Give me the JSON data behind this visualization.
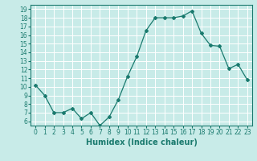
{
  "x": [
    0,
    1,
    2,
    3,
    4,
    5,
    6,
    7,
    8,
    9,
    10,
    11,
    12,
    13,
    14,
    15,
    16,
    17,
    18,
    19,
    20,
    21,
    22,
    23
  ],
  "y": [
    10.2,
    9.0,
    7.0,
    7.0,
    7.5,
    6.3,
    7.0,
    5.5,
    6.5,
    8.5,
    11.2,
    13.5,
    16.5,
    18.0,
    18.0,
    18.0,
    18.2,
    18.8,
    16.2,
    14.8,
    14.7,
    12.1,
    12.6,
    10.8
  ],
  "line_color": "#1a7a6e",
  "marker": "D",
  "marker_size": 2,
  "bg_color": "#c8ebe8",
  "grid_color": "#ffffff",
  "xlabel": "Humidex (Indice chaleur)",
  "xlim": [
    -0.5,
    23.5
  ],
  "ylim": [
    5.5,
    19.5
  ],
  "yticks": [
    6,
    7,
    8,
    9,
    10,
    11,
    12,
    13,
    14,
    15,
    16,
    17,
    18,
    19
  ],
  "xticks": [
    0,
    1,
    2,
    3,
    4,
    5,
    6,
    7,
    8,
    9,
    10,
    11,
    12,
    13,
    14,
    15,
    16,
    17,
    18,
    19,
    20,
    21,
    22,
    23
  ],
  "tick_label_size": 5.5,
  "xlabel_size": 7
}
